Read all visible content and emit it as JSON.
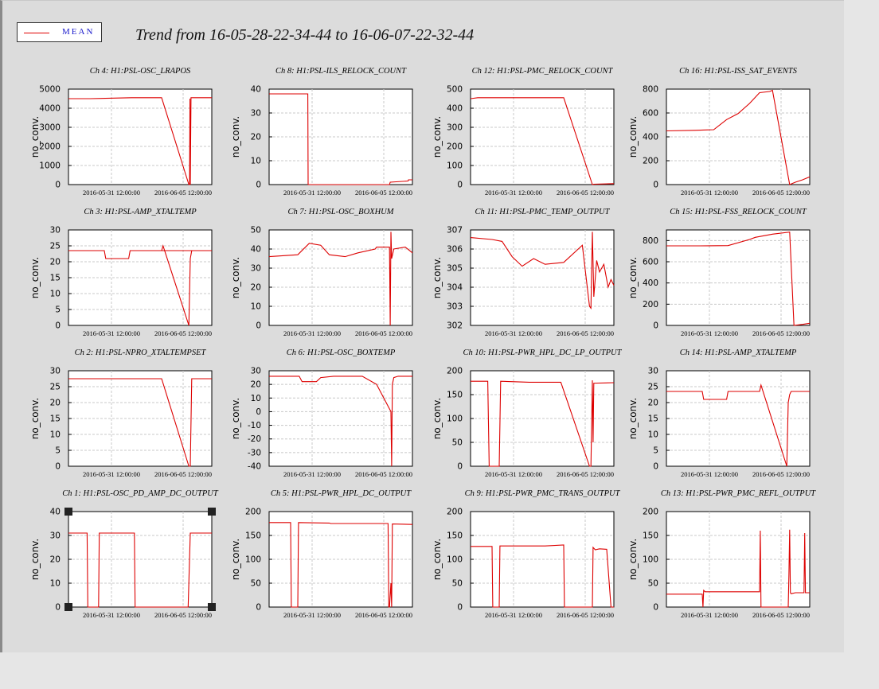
{
  "legend": {
    "label": "MEAN",
    "color": "#dd0000"
  },
  "title": "Trend from 16-05-28-22-34-44 to 16-06-07-22-32-44",
  "x_tick_labels": [
    "2016-05-31 12:00:00",
    "2016-06-05 12:00:00"
  ],
  "ylabel": "no_conv.",
  "chart_data": [
    {
      "type": "line",
      "title": "Ch 4: H1:PSL-OSC_LRAPOS",
      "ylabel": "no_conv.",
      "ylim": [
        0,
        5000
      ],
      "yticks": [
        0,
        1000,
        2000,
        3000,
        4000,
        5000
      ],
      "series": [
        {
          "x": [
            0,
            1.5,
            4.4,
            6.5,
            8.4,
            8.45,
            8.48,
            8.5,
            8.55,
            10
          ],
          "y": [
            4500,
            4500,
            4550,
            4550,
            0,
            0,
            4500,
            0,
            4550,
            4550
          ]
        }
      ]
    },
    {
      "type": "line",
      "title": "Ch 8: H1:PSL-ILS_RELOCK_COUNT",
      "ylabel": "no_conv.",
      "ylim": [
        0,
        40
      ],
      "yticks": [
        0,
        10,
        20,
        30,
        40
      ],
      "series": [
        {
          "x": [
            0,
            1.5,
            2.7,
            2.72,
            6.0,
            8.4,
            8.45,
            9.7,
            9.72,
            10
          ],
          "y": [
            38,
            38,
            38,
            0,
            0,
            0,
            1,
            1.5,
            2,
            2
          ]
        }
      ]
    },
    {
      "type": "line",
      "title": "Ch 12: H1:PSL-PMC_RELOCK_COUNT",
      "ylabel": "no_conv.",
      "ylim": [
        0,
        500
      ],
      "yticks": [
        0,
        100,
        200,
        300,
        400,
        500
      ],
      "series": [
        {
          "x": [
            0,
            0.5,
            4.2,
            6.5,
            8.5,
            8.6,
            10
          ],
          "y": [
            450,
            455,
            455,
            455,
            0,
            2,
            5
          ]
        }
      ]
    },
    {
      "type": "line",
      "title": "Ch 16: H1:PSL-ISS_SAT_EVENTS",
      "ylabel": "no_conv.",
      "ylim": [
        0,
        800
      ],
      "yticks": [
        0,
        200,
        400,
        600,
        800
      ],
      "series": [
        {
          "x": [
            0,
            2.0,
            3.3,
            4.2,
            5.0,
            5.8,
            6.5,
            7.2,
            7.4,
            8.6,
            9.0,
            9.5,
            10
          ],
          "y": [
            450,
            455,
            460,
            545,
            595,
            680,
            770,
            780,
            790,
            0,
            20,
            40,
            65
          ]
        }
      ]
    },
    {
      "type": "line",
      "title": "Ch 3: H1:PSL-AMP_XTALTEMP",
      "ylabel": "no_conv.",
      "ylim": [
        0,
        30
      ],
      "yticks": [
        0,
        5,
        10,
        15,
        20,
        25,
        30
      ],
      "series": [
        {
          "x": [
            0,
            2.5,
            2.6,
            4.2,
            4.3,
            9.0,
            6.5,
            6.6,
            8.4,
            8.5,
            8.6,
            10
          ],
          "y": [
            23.5,
            23.5,
            21,
            21,
            23.5,
            23.5,
            23.5,
            25,
            0,
            21,
            23.5,
            23.5
          ]
        }
      ]
    },
    {
      "type": "line",
      "title": "Ch 7: H1:PSL-OSC_BOXHUM",
      "ylabel": "no_conv.",
      "ylim": [
        0,
        50
      ],
      "yticks": [
        0,
        10,
        20,
        30,
        40,
        50
      ],
      "series": [
        {
          "x": [
            0,
            2.0,
            2.8,
            3.6,
            4.2,
            5.3,
            6.2,
            7.4,
            7.5,
            8.4,
            8.45,
            8.5,
            8.55,
            8.7,
            9.5,
            10
          ],
          "y": [
            36,
            37,
            43,
            42,
            37,
            36,
            38,
            40,
            41,
            41,
            0,
            49,
            35,
            40,
            41,
            38
          ]
        }
      ]
    },
    {
      "type": "line",
      "title": "Ch 11: H1:PSL-PMC_TEMP_OUTPUT",
      "ylabel": "no_conv.",
      "ylim": [
        302,
        307
      ],
      "yticks": [
        302,
        303,
        304,
        305,
        306,
        307
      ],
      "series": [
        {
          "x": [
            0,
            1.5,
            2.2,
            2.9,
            3.6,
            4.4,
            5.2,
            6.5,
            7.8,
            8.3,
            8.4,
            8.5,
            8.6,
            8.8,
            9.0,
            9.3,
            9.6,
            9.8,
            10
          ],
          "y": [
            306.6,
            306.5,
            306.4,
            305.6,
            305.1,
            305.5,
            305.2,
            305.3,
            306.2,
            303.0,
            302.9,
            306.9,
            303.5,
            305.4,
            304.8,
            305.2,
            304.0,
            304.4,
            304.1
          ]
        }
      ]
    },
    {
      "type": "line",
      "title": "Ch 15: H1:PSL-FSS_RELOCK_COUNT",
      "ylabel": "no_conv.",
      "ylim": [
        0,
        900
      ],
      "yticks": [
        0,
        200,
        400,
        600,
        800
      ],
      "series": [
        {
          "x": [
            0,
            2.3,
            4.3,
            5.8,
            6.2,
            7.4,
            8.6,
            8.9,
            9.5,
            10
          ],
          "y": [
            750,
            750,
            752,
            810,
            830,
            860,
            880,
            0,
            10,
            20
          ]
        }
      ]
    },
    {
      "type": "line",
      "title": "Ch 2: H1:PSL-NPRO_XTALTEMPSET",
      "ylabel": "no_conv.",
      "ylim": [
        0,
        30
      ],
      "yticks": [
        0,
        5,
        10,
        15,
        20,
        25,
        30
      ],
      "series": [
        {
          "x": [
            0,
            3.3,
            6.5,
            8.4,
            8.5,
            8.6,
            10
          ],
          "y": [
            27.5,
            27.5,
            27.5,
            0,
            0,
            27.5,
            27.5
          ]
        }
      ]
    },
    {
      "type": "line",
      "title": "Ch 6: H1:PSL-OSC_BOXTEMP",
      "ylabel": "no_conv.",
      "ylim": [
        -40,
        30
      ],
      "yticks": [
        -40,
        -30,
        -20,
        -10,
        0,
        10,
        20,
        30
      ],
      "series": [
        {
          "x": [
            0,
            1.5,
            2.1,
            2.3,
            3.3,
            3.6,
            4.5,
            6.5,
            7.5,
            8.5,
            8.55,
            8.6,
            8.7,
            9.0,
            10
          ],
          "y": [
            26,
            26,
            26,
            22,
            22,
            25,
            26,
            26,
            20,
            0,
            -40,
            20,
            25,
            26,
            26
          ]
        }
      ]
    },
    {
      "type": "line",
      "title": "Ch 10: H1:PSL-PWR_HPL_DC_LP_OUTPUT",
      "ylabel": "no_conv.",
      "ylim": [
        0,
        200
      ],
      "yticks": [
        0,
        50,
        100,
        150,
        200
      ],
      "series": [
        {
          "x": [
            0,
            1.2,
            1.3,
            1.4,
            2.0,
            2.1,
            4.1,
            4.2,
            6.3,
            8.3,
            8.4,
            8.5,
            8.55,
            8.6,
            10
          ],
          "y": [
            178,
            178,
            0,
            0,
            0,
            178,
            176,
            176,
            176,
            0,
            0,
            180,
            50,
            174,
            175
          ]
        }
      ]
    },
    {
      "type": "line",
      "title": "Ch 14: H1:PSL-AMP_XTALTEMP",
      "ylabel": "no_conv.",
      "ylim": [
        0,
        30
      ],
      "yticks": [
        0,
        5,
        10,
        15,
        20,
        25,
        30
      ],
      "series": [
        {
          "x": [
            0,
            2.5,
            2.6,
            4.2,
            4.3,
            6.5,
            6.6,
            8.4,
            8.5,
            8.6,
            8.7,
            10
          ],
          "y": [
            23.5,
            23.5,
            21,
            21,
            23.5,
            23.5,
            25.5,
            0,
            20,
            22.5,
            23.5,
            23.5
          ]
        }
      ]
    },
    {
      "type": "line",
      "title": "Ch 1: H1:PSL-OSC_PD_AMP_DC_OUTPUT",
      "ylabel": "no_conv.",
      "ylim": [
        0,
        40
      ],
      "yticks": [
        0,
        10,
        20,
        30,
        40
      ],
      "series": [
        {
          "x": [
            0,
            1.3,
            1.35,
            1.5,
            2.1,
            2.15,
            4.6,
            4.65,
            6.5,
            8.3,
            8.35,
            8.5,
            8.55,
            10
          ],
          "y": [
            31,
            31,
            0,
            0,
            0,
            31,
            31,
            0,
            0,
            0,
            0,
            31,
            31,
            31
          ]
        }
      ]
    },
    {
      "type": "line",
      "title": "Ch 5: H1:PSL-PWR_HPL_DC_OUTPUT",
      "ylabel": "no_conv.",
      "ylim": [
        0,
        200
      ],
      "yticks": [
        0,
        50,
        100,
        150,
        200
      ],
      "series": [
        {
          "x": [
            0,
            1.5,
            1.55,
            2.0,
            2.05,
            4.2,
            4.3,
            6.4,
            8.3,
            8.35,
            8.4,
            8.5,
            8.55,
            8.6,
            10
          ],
          "y": [
            177,
            177,
            0,
            0,
            177,
            176,
            175,
            175,
            175,
            0,
            0,
            50,
            0,
            174,
            173
          ]
        }
      ]
    },
    {
      "type": "line",
      "title": "Ch 9: H1:PSL-PWR_PMC_TRANS_OUTPUT",
      "ylabel": "no_conv.",
      "ylim": [
        0,
        200
      ],
      "yticks": [
        0,
        50,
        100,
        150,
        200
      ],
      "series": [
        {
          "x": [
            0,
            1.5,
            1.55,
            2.0,
            2.05,
            4.0,
            5.2,
            6.5,
            6.55,
            8.5,
            8.55,
            8.7,
            9.0,
            9.5,
            9.8,
            10
          ],
          "y": [
            127,
            127,
            0,
            0,
            128,
            128,
            128,
            130,
            0,
            0,
            125,
            120,
            122,
            121,
            0,
            0
          ]
        }
      ]
    },
    {
      "type": "line",
      "title": "Ch 13: H1:PSL-PWR_PMC_REFL_OUTPUT",
      "ylabel": "no_conv.",
      "ylim": [
        0,
        200
      ],
      "yticks": [
        0,
        50,
        100,
        150,
        200
      ],
      "series": [
        {
          "x": [
            0,
            1.5,
            2.5,
            2.55,
            2.6,
            2.7,
            4.0,
            5.5,
            6.5,
            6.55,
            6.6,
            8.5,
            8.55,
            8.6,
            8.65,
            8.7,
            9.0,
            9.6,
            9.65,
            9.7,
            10
          ],
          "y": [
            27,
            27,
            27,
            0,
            35,
            32,
            32,
            32,
            32,
            160,
            0,
            0,
            70,
            162,
            30,
            28,
            30,
            30,
            155,
            30,
            30
          ]
        }
      ]
    }
  ]
}
